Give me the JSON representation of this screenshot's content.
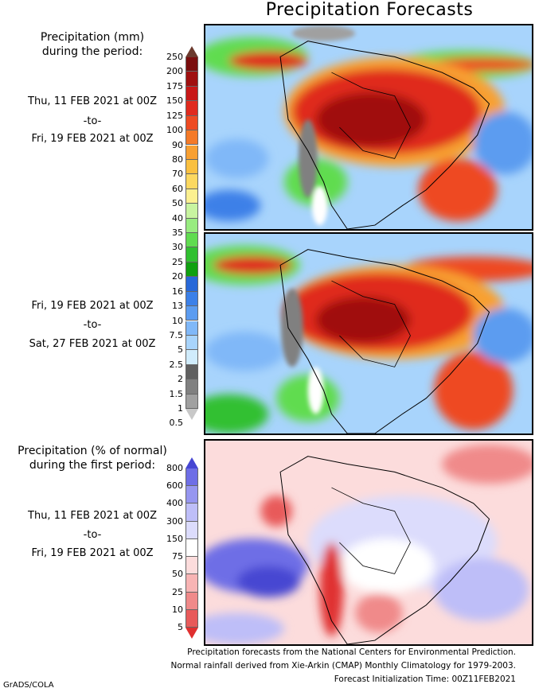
{
  "title": "Precipitation Forecasts",
  "panel1": {
    "heading": [
      "Precipitation (mm)",
      "during the period:"
    ],
    "start": "Thu, 11 FEB 2021 at 00Z",
    "sep": "-to-",
    "end": "Fri, 19 FEB 2021 at 00Z"
  },
  "panel2": {
    "start": "Fri, 19 FEB 2021 at 00Z",
    "sep": "-to-",
    "end": "Sat, 27 FEB 2021 at 00Z"
  },
  "panel3": {
    "heading": [
      "Precipitation (% of normal)",
      "during the first period:"
    ],
    "start": "Thu, 11 FEB 2021 at 00Z",
    "sep": "-to-",
    "end": "Fri, 19 FEB 2021 at 00Z"
  },
  "colorbar_mm": {
    "labels": [
      "250",
      "200",
      "175",
      "150",
      "125",
      "100",
      "90",
      "80",
      "70",
      "60",
      "50",
      "40",
      "35",
      "30",
      "25",
      "20",
      "16",
      "13",
      "10",
      "7.5",
      "5",
      "2.5",
      "2",
      "1.5",
      "1",
      "0.5"
    ],
    "colors": [
      "#6b3a2e",
      "#7a0d0d",
      "#a01010",
      "#c81818",
      "#e02a1e",
      "#ee4a22",
      "#f47a28",
      "#f8a032",
      "#fac040",
      "#fcd860",
      "#fcf090",
      "#c8f4a0",
      "#98ec80",
      "#60dc50",
      "#30c030",
      "#10a010",
      "#2868d8",
      "#3c80e8",
      "#5c9cf0",
      "#80b8f8",
      "#a8d4fc",
      "#d0ecfc",
      "#606060",
      "#808080",
      "#a0a0a0",
      "#c8c8c8"
    ]
  },
  "colorbar_pct": {
    "labels": [
      "800",
      "600",
      "400",
      "300",
      "150",
      "75",
      "50",
      "25",
      "10",
      "5"
    ],
    "colors": [
      "#4646d2",
      "#6e6ee6",
      "#9696f0",
      "#bebef8",
      "#dcdcfc",
      "#ffffff",
      "#fcdcdc",
      "#f8b4b4",
      "#f08a8a",
      "#e85a5a",
      "#e03030"
    ]
  },
  "footer": [
    "Precipitation forecasts from the National Centers for Environmental Prediction.",
    "Normal rainfall derived from Xie-Arkin (CMAP) Monthly Climatology for 1979-2003.",
    "Forecast Initialization Time: 00Z11FEB2021"
  ],
  "credit": "GrADS/COLA"
}
